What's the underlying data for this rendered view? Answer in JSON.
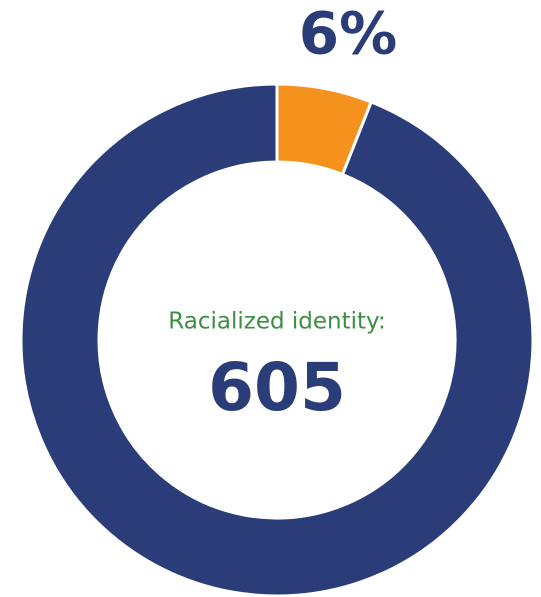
{
  "chart_data": {
    "type": "donut",
    "values": [
      6,
      94
    ],
    "value_labels": [
      "6%",
      null
    ],
    "colors": [
      "#f5921e",
      "#2b3d78"
    ],
    "center_label": "Racialized identity:",
    "center_value": 605
  }
}
